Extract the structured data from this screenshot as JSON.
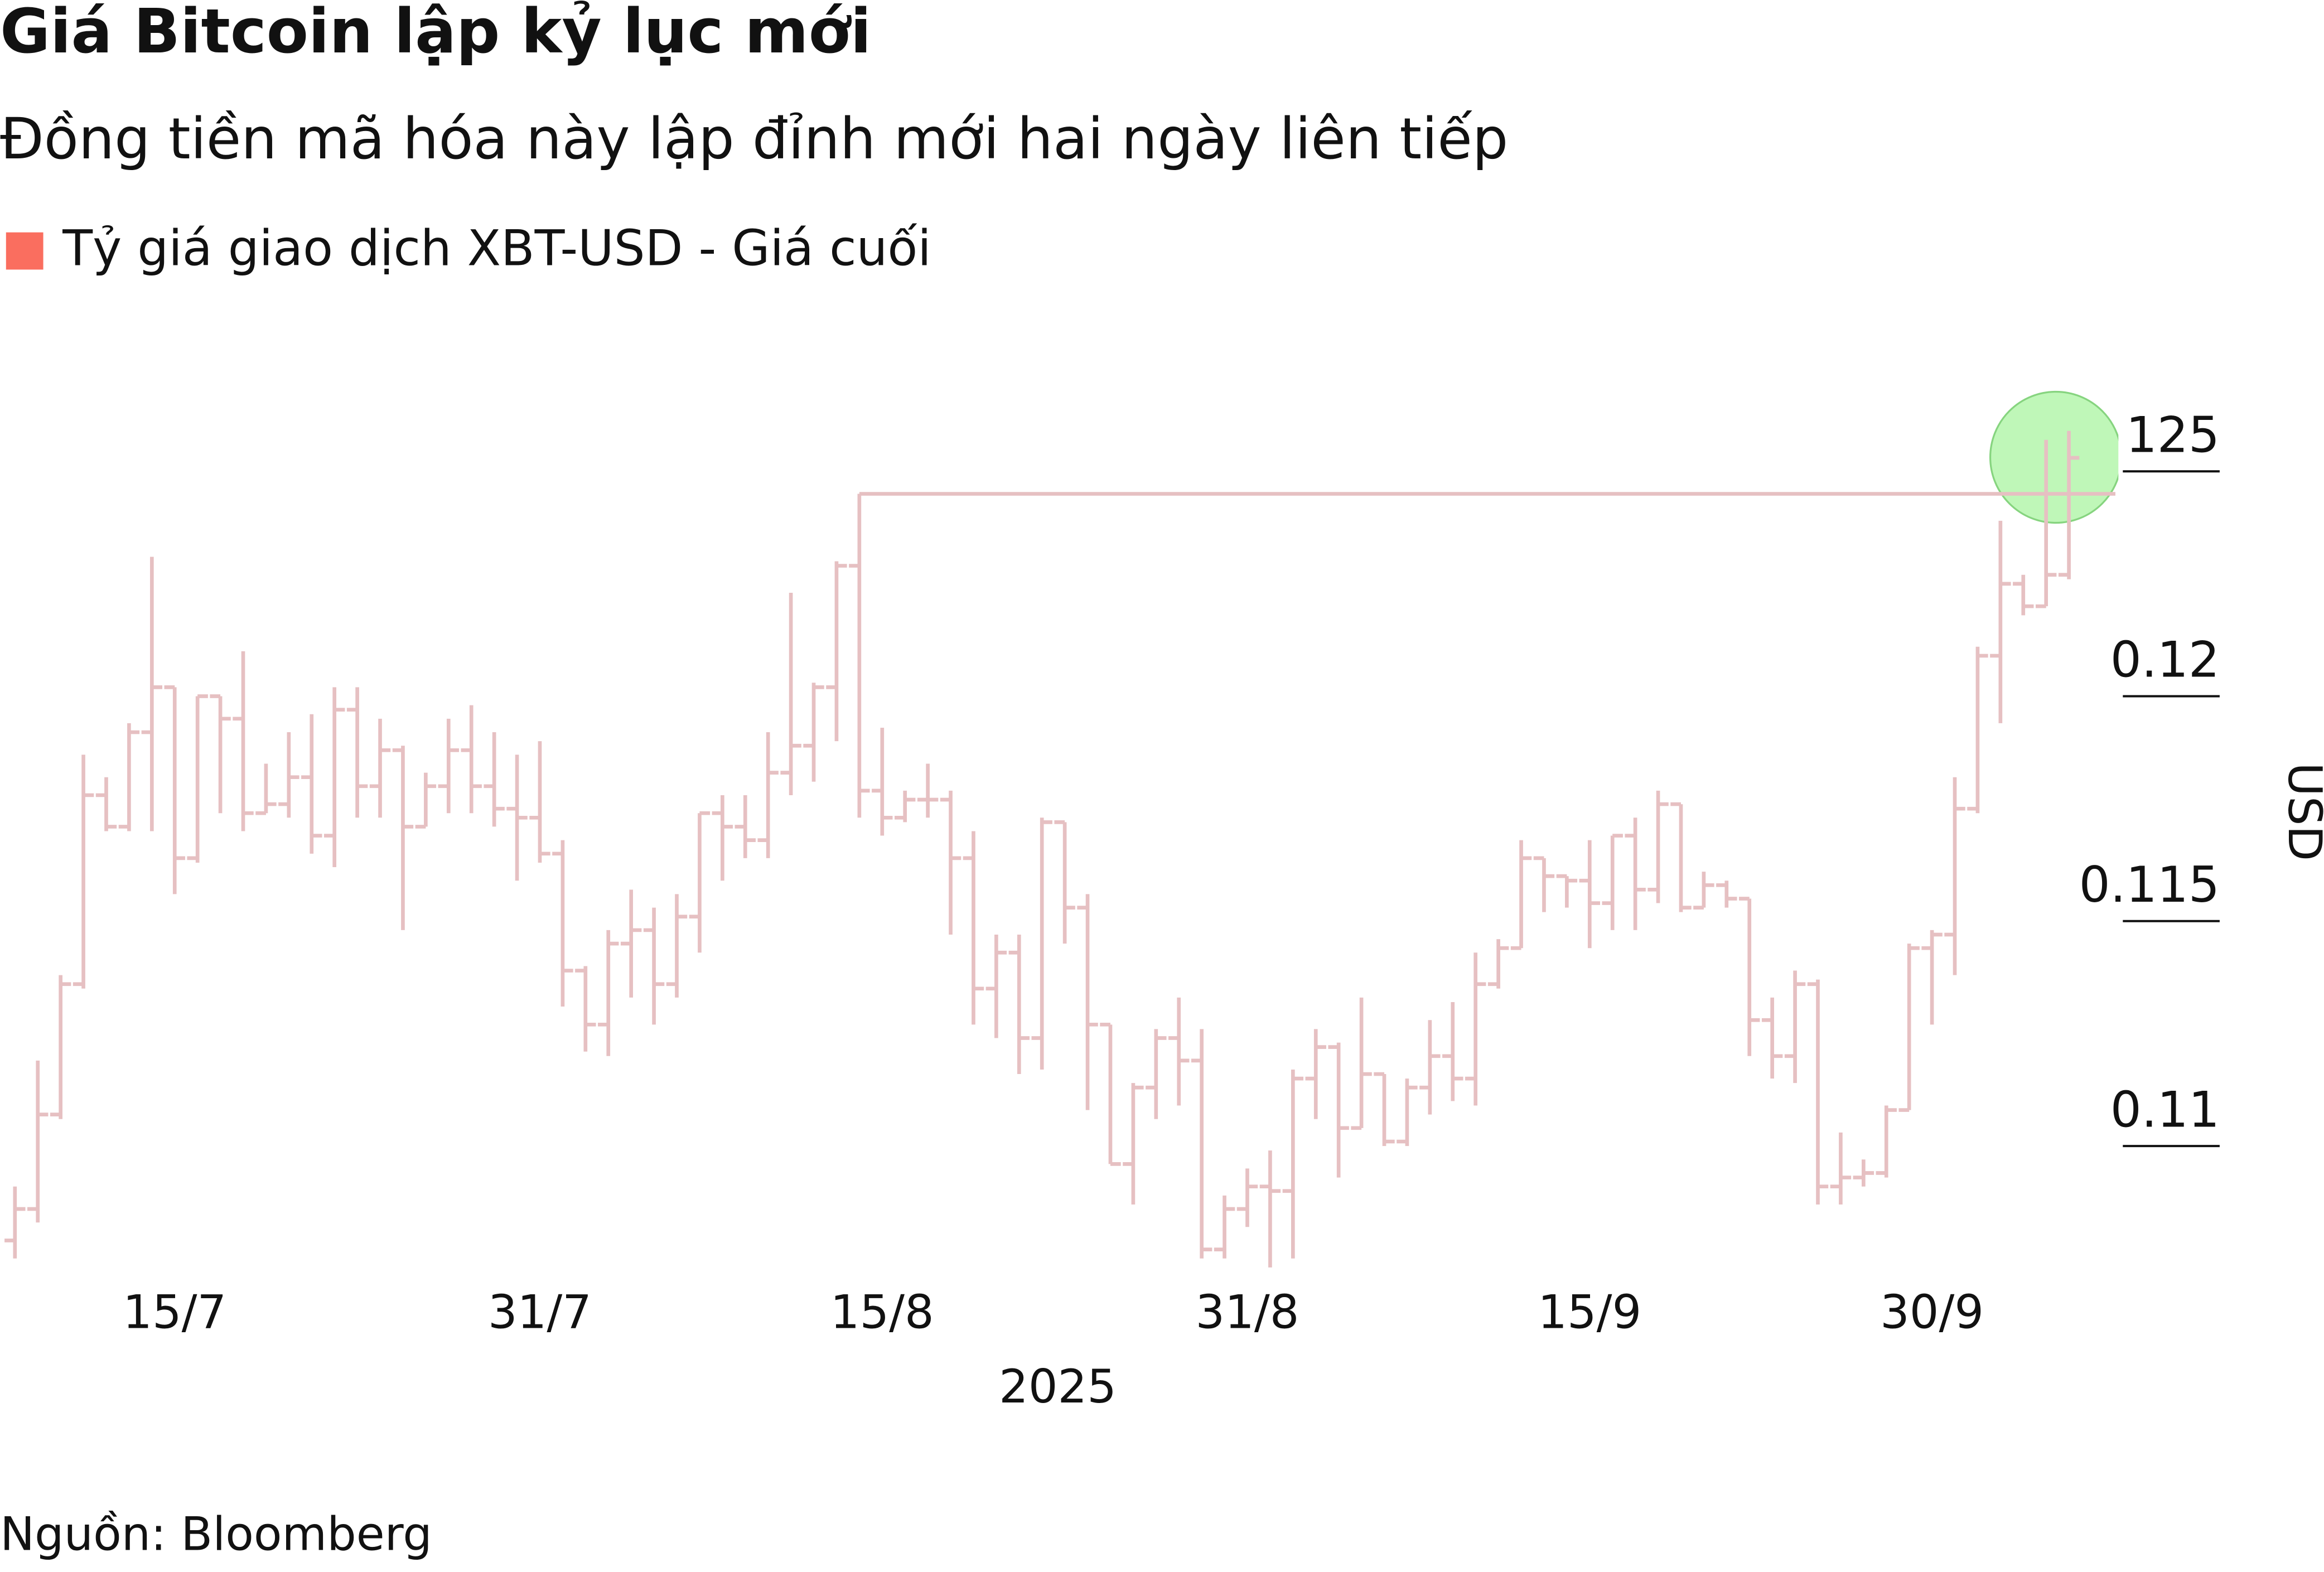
{
  "chart_data": {
    "type": "ohlc",
    "title": "Giá Bitcoin lập kỷ lục mới",
    "subtitle": "Đồng tiền mã hóa này lập đỉnh mới hai ngày liên tiếp",
    "source": "Nguồn: Bloomberg",
    "x_label": "2025",
    "y_label": "USD",
    "ylim": [
      0.107,
      0.1272
    ],
    "yticks": [
      {
        "value": 0.125,
        "label": "125"
      },
      0.12,
      0.115,
      0.11
    ],
    "categories": [
      null,
      null,
      null,
      null,
      null,
      null,
      null,
      "15/7",
      null,
      null,
      null,
      null,
      null,
      null,
      null,
      null,
      null,
      null,
      null,
      null,
      null,
      null,
      null,
      "31/7",
      null,
      null,
      null,
      null,
      null,
      null,
      null,
      null,
      null,
      null,
      null,
      null,
      null,
      null,
      "15/8",
      null,
      null,
      null,
      null,
      null,
      null,
      null,
      null,
      null,
      null,
      null,
      null,
      null,
      null,
      null,
      "31/8",
      null,
      null,
      null,
      null,
      null,
      null,
      null,
      null,
      null,
      null,
      null,
      null,
      null,
      null,
      "15/9",
      null,
      null,
      null,
      null,
      null,
      null,
      null,
      null,
      null,
      null,
      null,
      null,
      null,
      null,
      "30/9",
      null,
      null,
      null,
      null,
      null,
      null
    ],
    "series": [
      {
        "name": "Tỷ giá giao dịch XBT-USD - Giá cuối",
        "color": "#fa6e5f",
        "bar_color": "#e6c0c2",
        "open": [
          0.1079,
          0.1086,
          0.1107,
          0.1136,
          0.1178,
          0.1171,
          0.1192,
          0.1202,
          0.1164,
          0.12,
          0.1195,
          0.1174,
          0.1176,
          0.1182,
          0.1169,
          0.1197,
          0.118,
          0.1188,
          0.1171,
          0.118,
          0.1188,
          0.118,
          0.1175,
          0.1173,
          0.1165,
          0.1139,
          0.1127,
          0.1145,
          0.1148,
          0.1136,
          0.1151,
          0.1174,
          0.1171,
          0.1168,
          0.1183,
          0.1189,
          0.1202,
          0.1229,
          0.1179,
          0.1173,
          0.1177,
          0.1177,
          0.1164,
          0.1135,
          0.1143,
          0.1124,
          0.1172,
          0.1153,
          0.1127,
          0.1096,
          0.1113,
          0.1124,
          0.1119,
          0.1077,
          0.1086,
          0.1091,
          0.109,
          0.1115,
          0.1122,
          0.1104,
          0.1116,
          0.1101,
          0.1113,
          0.112,
          0.1115,
          0.1136,
          0.1144,
          0.1164,
          0.116,
          0.1159,
          0.1154,
          0.1169,
          0.1157,
          0.1176,
          0.1153,
          0.1158,
          0.1155,
          0.1128,
          0.112,
          0.1136,
          0.1091,
          0.1093,
          0.1094,
          0.1108,
          0.1144,
          0.1147,
          0.1175,
          0.1209,
          0.1225,
          0.122,
          0.1227
        ],
        "high": [
          0.1091,
          0.1119,
          0.1138,
          0.1187,
          0.1182,
          0.1194,
          0.1231,
          0.1202,
          0.12,
          0.12,
          0.121,
          0.1185,
          0.1192,
          0.1196,
          0.1202,
          0.1202,
          0.1195,
          0.1189,
          0.1183,
          0.1195,
          0.1198,
          0.1192,
          0.1187,
          0.119,
          0.1168,
          0.114,
          0.1148,
          0.1157,
          0.1153,
          0.1156,
          0.1174,
          0.1178,
          0.1178,
          0.1192,
          0.1223,
          0.1203,
          0.123,
          0.1245,
          0.1193,
          0.1179,
          0.1185,
          0.1179,
          0.117,
          0.1147,
          0.1147,
          0.1173,
          0.1172,
          0.1156,
          0.1127,
          0.1114,
          0.1126,
          0.1133,
          0.1126,
          0.1089,
          0.1095,
          0.1099,
          0.1117,
          0.1126,
          0.1123,
          0.1133,
          0.1116,
          0.1115,
          0.1128,
          0.1132,
          0.1143,
          0.1146,
          0.1168,
          0.1164,
          0.116,
          0.1168,
          0.1169,
          0.1173,
          0.1179,
          0.1176,
          0.1161,
          0.1159,
          0.1155,
          0.1133,
          0.1139,
          0.1137,
          0.1103,
          0.1097,
          0.1109,
          0.1145,
          0.1148,
          0.1182,
          0.1211,
          0.1239,
          0.1227,
          0.1257,
          0.1259
        ],
        "low": [
          0.1075,
          0.1083,
          0.1106,
          0.1135,
          0.117,
          0.117,
          0.117,
          0.1156,
          0.1163,
          0.1174,
          0.117,
          0.1174,
          0.1173,
          0.1165,
          0.1162,
          0.1173,
          0.1173,
          0.1148,
          0.1171,
          0.1174,
          0.1174,
          0.1171,
          0.1159,
          0.1163,
          0.1131,
          0.1121,
          0.112,
          0.1133,
          0.1127,
          0.1133,
          0.1143,
          0.1159,
          0.1164,
          0.1164,
          0.1178,
          0.1181,
          0.119,
          0.1173,
          0.1169,
          0.1172,
          0.1173,
          0.1147,
          0.1127,
          0.1124,
          0.1116,
          0.1117,
          0.1145,
          0.1108,
          0.1096,
          0.1087,
          0.1106,
          0.1109,
          0.1075,
          0.1075,
          0.1082,
          0.1073,
          0.1075,
          0.1106,
          0.1093,
          0.1104,
          0.11,
          0.11,
          0.1107,
          0.111,
          0.1109,
          0.1135,
          0.1144,
          0.1152,
          0.1153,
          0.1144,
          0.1148,
          0.1148,
          0.1154,
          0.1152,
          0.1153,
          0.1153,
          0.112,
          0.1115,
          0.1114,
          0.1087,
          0.1087,
          0.1091,
          0.1093,
          0.1108,
          0.1127,
          0.1138,
          0.1174,
          0.1194,
          0.1218,
          0.122,
          0.1226
        ],
        "close": [
          0.1086,
          0.1107,
          0.1136,
          0.1178,
          0.1171,
          0.1192,
          0.1202,
          0.1164,
          0.12,
          0.1195,
          0.1174,
          0.1176,
          0.1182,
          0.1169,
          0.1197,
          0.118,
          0.1188,
          0.1171,
          0.118,
          0.1188,
          0.118,
          0.1175,
          0.1173,
          0.1165,
          0.1139,
          0.1127,
          0.1145,
          0.1148,
          0.1136,
          0.1151,
          0.1174,
          0.1171,
          0.1168,
          0.1183,
          0.1189,
          0.1202,
          0.1229,
          0.1179,
          0.1173,
          0.1177,
          0.1177,
          0.1164,
          0.1135,
          0.1143,
          0.1124,
          0.1172,
          0.1153,
          0.1127,
          0.1096,
          0.1113,
          0.1124,
          0.1119,
          0.1077,
          0.1086,
          0.1091,
          0.109,
          0.1115,
          0.1122,
          0.1104,
          0.1116,
          0.1101,
          0.1113,
          0.112,
          0.1115,
          0.1136,
          0.1144,
          0.1164,
          0.116,
          0.1159,
          0.1154,
          0.1169,
          0.1157,
          0.1176,
          0.1153,
          0.1158,
          0.1155,
          0.1128,
          0.112,
          0.1136,
          0.1091,
          0.1093,
          0.1094,
          0.1108,
          0.1144,
          0.1147,
          0.1175,
          0.1209,
          0.1225,
          0.122,
          0.1227,
          0.1253
        ]
      }
    ]
  }
}
